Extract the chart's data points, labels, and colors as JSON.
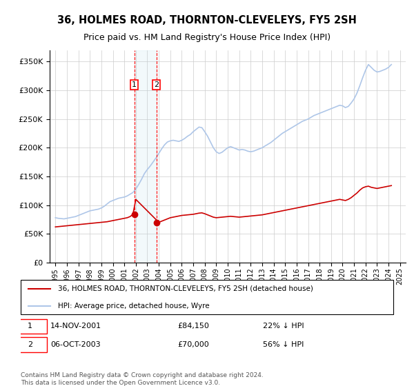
{
  "title": "36, HOLMES ROAD, THORNTON-CLEVELEYS, FY5 2SH",
  "subtitle": "Price paid vs. HM Land Registry's House Price Index (HPI)",
  "title_fontsize": 11,
  "subtitle_fontsize": 9.5,
  "ylabel_ticks": [
    "£0",
    "£50K",
    "£100K",
    "£150K",
    "£200K",
    "£250K",
    "£300K",
    "£350K"
  ],
  "ylim": [
    0,
    370000
  ],
  "yticks": [
    0,
    50000,
    100000,
    150000,
    200000,
    250000,
    300000,
    350000
  ],
  "background_color": "#ffffff",
  "grid_color": "#cccccc",
  "hpi_color": "#aec6e8",
  "price_color": "#cc0000",
  "transaction1": {
    "date": "14-NOV-2001",
    "price": 84150,
    "label": "1",
    "pct": "22% ↓ HPI"
  },
  "transaction2": {
    "date": "06-OCT-2003",
    "price": 70000,
    "label": "2",
    "pct": "56% ↓ HPI"
  },
  "legend_line1": "36, HOLMES ROAD, THORNTON-CLEVELEYS, FY5 2SH (detached house)",
  "legend_line2": "HPI: Average price, detached house, Wyre",
  "footer": "Contains HM Land Registry data © Crown copyright and database right 2024.\nThis data is licensed under the Open Government Licence v3.0.",
  "hpi_data": {
    "years": [
      1995.0,
      1995.25,
      1995.5,
      1995.75,
      1996.0,
      1996.25,
      1996.5,
      1996.75,
      1997.0,
      1997.25,
      1997.5,
      1997.75,
      1998.0,
      1998.25,
      1998.5,
      1998.75,
      1999.0,
      1999.25,
      1999.5,
      1999.75,
      2000.0,
      2000.25,
      2000.5,
      2000.75,
      2001.0,
      2001.25,
      2001.5,
      2001.75,
      2002.0,
      2002.25,
      2002.5,
      2002.75,
      2003.0,
      2003.25,
      2003.5,
      2003.75,
      2004.0,
      2004.25,
      2004.5,
      2004.75,
      2005.0,
      2005.25,
      2005.5,
      2005.75,
      2006.0,
      2006.25,
      2006.5,
      2006.75,
      2007.0,
      2007.25,
      2007.5,
      2007.75,
      2008.0,
      2008.25,
      2008.5,
      2008.75,
      2009.0,
      2009.25,
      2009.5,
      2009.75,
      2010.0,
      2010.25,
      2010.5,
      2010.75,
      2011.0,
      2011.25,
      2011.5,
      2011.75,
      2012.0,
      2012.25,
      2012.5,
      2012.75,
      2013.0,
      2013.25,
      2013.5,
      2013.75,
      2014.0,
      2014.25,
      2014.5,
      2014.75,
      2015.0,
      2015.25,
      2015.5,
      2015.75,
      2016.0,
      2016.25,
      2016.5,
      2016.75,
      2017.0,
      2017.25,
      2017.5,
      2017.75,
      2018.0,
      2018.25,
      2018.5,
      2018.75,
      2019.0,
      2019.25,
      2019.5,
      2019.75,
      2020.0,
      2020.25,
      2020.5,
      2020.75,
      2021.0,
      2021.25,
      2021.5,
      2021.75,
      2022.0,
      2022.25,
      2022.5,
      2022.75,
      2023.0,
      2023.25,
      2023.5,
      2023.75,
      2024.0,
      2024.25
    ],
    "values": [
      78000,
      77000,
      76500,
      76000,
      77000,
      78000,
      79000,
      80000,
      82000,
      84000,
      86000,
      88000,
      90000,
      91000,
      92000,
      93000,
      95000,
      98000,
      102000,
      106000,
      108000,
      110000,
      112000,
      113000,
      114000,
      116000,
      119000,
      122000,
      128000,
      136000,
      145000,
      155000,
      162000,
      168000,
      175000,
      182000,
      190000,
      198000,
      205000,
      210000,
      212000,
      213000,
      212000,
      211000,
      213000,
      216000,
      220000,
      223000,
      228000,
      232000,
      236000,
      235000,
      228000,
      220000,
      210000,
      200000,
      193000,
      190000,
      192000,
      196000,
      200000,
      202000,
      200000,
      198000,
      196000,
      197000,
      196000,
      194000,
      193000,
      194000,
      196000,
      198000,
      200000,
      203000,
      206000,
      209000,
      213000,
      217000,
      221000,
      225000,
      228000,
      231000,
      234000,
      237000,
      240000,
      243000,
      246000,
      248000,
      250000,
      253000,
      256000,
      258000,
      260000,
      262000,
      264000,
      266000,
      268000,
      270000,
      272000,
      274000,
      273000,
      270000,
      272000,
      278000,
      285000,
      295000,
      308000,
      322000,
      335000,
      345000,
      340000,
      335000,
      332000,
      333000,
      335000,
      337000,
      340000,
      345000
    ]
  },
  "price_data": {
    "years": [
      1995.0,
      1995.25,
      1995.5,
      1995.75,
      1996.0,
      1996.25,
      1996.5,
      1996.75,
      1997.0,
      1997.25,
      1997.5,
      1997.75,
      1998.0,
      1998.25,
      1998.5,
      1998.75,
      1999.0,
      1999.25,
      1999.5,
      1999.75,
      2000.0,
      2000.25,
      2000.5,
      2000.75,
      2001.0,
      2001.25,
      2001.5,
      2001.75,
      2002.0,
      2002.25,
      2002.5,
      2002.75,
      2003.0,
      2003.25,
      2003.5,
      2003.75,
      2004.0,
      2004.25,
      2004.5,
      2004.75,
      2005.0,
      2005.25,
      2005.5,
      2005.75,
      2006.0,
      2006.25,
      2006.5,
      2006.75,
      2007.0,
      2007.25,
      2007.5,
      2007.75,
      2008.0,
      2008.25,
      2008.5,
      2008.75,
      2009.0,
      2009.25,
      2009.5,
      2009.75,
      2010.0,
      2010.25,
      2010.5,
      2010.75,
      2011.0,
      2011.25,
      2011.5,
      2011.75,
      2012.0,
      2012.25,
      2012.5,
      2012.75,
      2013.0,
      2013.25,
      2013.5,
      2013.75,
      2014.0,
      2014.25,
      2014.5,
      2014.75,
      2015.0,
      2015.25,
      2015.5,
      2015.75,
      2016.0,
      2016.25,
      2016.5,
      2016.75,
      2017.0,
      2017.25,
      2017.5,
      2017.75,
      2018.0,
      2018.25,
      2018.5,
      2018.75,
      2019.0,
      2019.25,
      2019.5,
      2019.75,
      2020.0,
      2020.25,
      2020.5,
      2020.75,
      2021.0,
      2021.25,
      2021.5,
      2021.75,
      2022.0,
      2022.25,
      2022.5,
      2022.75,
      2023.0,
      2023.25,
      2023.5,
      2023.75,
      2024.0,
      2024.25
    ],
    "values": [
      62000,
      62500,
      63000,
      63500,
      64000,
      64500,
      65000,
      65500,
      66000,
      66500,
      67000,
      67500,
      68000,
      68500,
      69000,
      69500,
      70000,
      70500,
      71000,
      72000,
      73000,
      74000,
      75000,
      76000,
      77000,
      78000,
      80000,
      84150,
      110000,
      105000,
      100000,
      95000,
      90000,
      85000,
      80000,
      75000,
      70000,
      72000,
      74000,
      76000,
      78000,
      79000,
      80000,
      81000,
      82000,
      82500,
      83000,
      83500,
      84000,
      85000,
      86000,
      86500,
      85000,
      83000,
      81000,
      79000,
      78000,
      78500,
      79000,
      79500,
      80000,
      80500,
      80000,
      79500,
      79000,
      79500,
      80000,
      80500,
      81000,
      81500,
      82000,
      82500,
      83000,
      84000,
      85000,
      86000,
      87000,
      88000,
      89000,
      90000,
      91000,
      92000,
      93000,
      94000,
      95000,
      96000,
      97000,
      98000,
      99000,
      100000,
      101000,
      102000,
      103000,
      104000,
      105000,
      106000,
      107000,
      108000,
      109000,
      110000,
      109000,
      108000,
      110000,
      113000,
      117000,
      121000,
      126000,
      130000,
      132000,
      133000,
      131000,
      130000,
      129000,
      130000,
      131000,
      132000,
      133000,
      134000
    ]
  }
}
